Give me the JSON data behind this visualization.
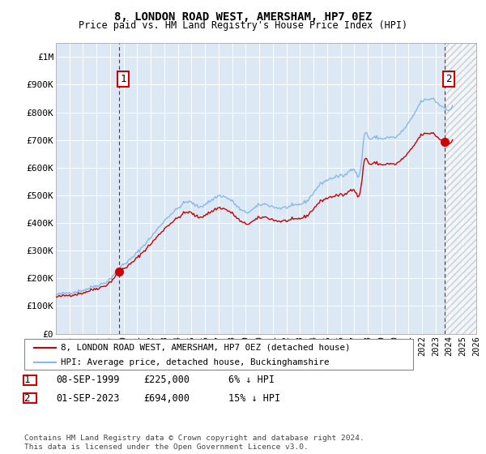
{
  "title": "8, LONDON ROAD WEST, AMERSHAM, HP7 0EZ",
  "subtitle": "Price paid vs. HM Land Registry's House Price Index (HPI)",
  "ylabel_ticks": [
    "£0",
    "£100K",
    "£200K",
    "£300K",
    "£400K",
    "£500K",
    "£600K",
    "£700K",
    "£800K",
    "£900K",
    "£1M"
  ],
  "ytick_values": [
    0,
    100000,
    200000,
    300000,
    400000,
    500000,
    600000,
    700000,
    800000,
    900000,
    1000000
  ],
  "ylim": [
    0,
    1050000
  ],
  "xlim_start": 1995.0,
  "xlim_end": 2026.0,
  "bg_color": "#dce9f5",
  "grid_color": "#ffffff",
  "sale1_x": 1999.67,
  "sale1_y": 225000,
  "sale2_x": 2023.67,
  "sale2_y": 694000,
  "sale_color": "#cc0000",
  "hpi_color": "#88b8e8",
  "legend_line1": "8, LONDON ROAD WEST, AMERSHAM, HP7 0EZ (detached house)",
  "legend_line2": "HPI: Average price, detached house, Buckinghamshire",
  "annotation1_date": "08-SEP-1999",
  "annotation1_price": "£225,000",
  "annotation1_pct": "6% ↓ HPI",
  "annotation2_date": "01-SEP-2023",
  "annotation2_price": "£694,000",
  "annotation2_pct": "15% ↓ HPI",
  "footer": "Contains HM Land Registry data © Crown copyright and database right 2024.\nThis data is licensed under the Open Government Licence v3.0."
}
